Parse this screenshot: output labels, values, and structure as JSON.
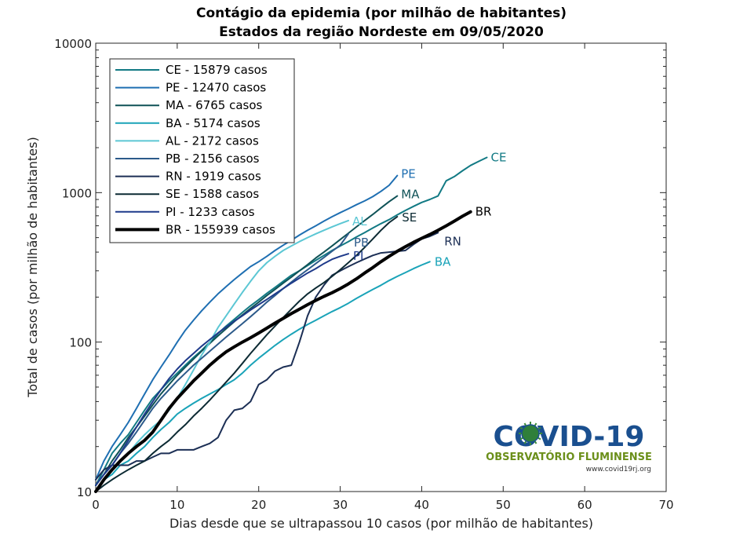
{
  "chart_data": {
    "type": "line",
    "title": "Contágio da epidemia (por milhão de habitantes)",
    "subtitle": "Estados da região Nordeste  em 09/05/2020",
    "xlabel": "Dias desde que se ultrapassou 10 casos (por milhão de habitantes)",
    "ylabel": "Total de casos (por milhão de habitantes)",
    "xlim": [
      0,
      70
    ],
    "ylim": [
      10,
      10000
    ],
    "yscale": "log",
    "xticks": [
      "0",
      "10",
      "20",
      "30",
      "40",
      "50",
      "60",
      "70"
    ],
    "yticks": [
      "10",
      "100",
      "1000",
      "10000"
    ],
    "grid": false,
    "legend_position": "top-left",
    "series": [
      {
        "name": "CE - 15879 casos",
        "end_label": "CE",
        "color": "#127a84",
        "width": 2,
        "x": [
          0,
          1,
          2,
          3,
          4,
          5,
          6,
          7,
          8,
          9,
          10,
          11,
          12,
          13,
          14,
          15,
          16,
          17,
          18,
          19,
          20,
          21,
          22,
          23,
          24,
          25,
          26,
          27,
          28,
          29,
          30,
          31,
          32,
          33,
          34,
          35,
          36,
          37,
          38,
          39,
          40,
          41,
          42,
          43,
          44,
          45,
          46,
          47,
          48
        ],
        "y": [
          11,
          14,
          18,
          21,
          24,
          29,
          35,
          42,
          48,
          55,
          62,
          70,
          79,
          88,
          100,
          114,
          128,
          142,
          158,
          175,
          192,
          212,
          232,
          255,
          280,
          300,
          325,
          352,
          380,
          410,
          440,
          470,
          505,
          540,
          580,
          620,
          660,
          710,
          760,
          810,
          860,
          900,
          950,
          1200,
          1280,
          1400,
          1520,
          1620,
          1720
        ]
      },
      {
        "name": "PE - 12470 casos",
        "end_label": "PE",
        "color": "#1f6fb2",
        "width": 2,
        "x": [
          0,
          1,
          2,
          3,
          4,
          5,
          6,
          7,
          8,
          9,
          10,
          11,
          12,
          13,
          14,
          15,
          16,
          17,
          18,
          19,
          20,
          21,
          22,
          23,
          24,
          25,
          26,
          27,
          28,
          29,
          30,
          31,
          32,
          33,
          34,
          35,
          36,
          37
        ],
        "y": [
          12,
          16,
          20,
          24,
          29,
          36,
          45,
          56,
          68,
          82,
          100,
          120,
          140,
          162,
          185,
          210,
          235,
          262,
          290,
          320,
          345,
          375,
          410,
          445,
          480,
          520,
          560,
          600,
          645,
          690,
          735,
          780,
          830,
          880,
          940,
          1020,
          1120,
          1300
        ]
      },
      {
        "name": "MA - 6765 casos",
        "end_label": "MA",
        "color": "#0f5257",
        "width": 2,
        "x": [
          0,
          1,
          2,
          3,
          4,
          5,
          6,
          7,
          8,
          9,
          10,
          11,
          12,
          13,
          14,
          15,
          16,
          17,
          18,
          19,
          20,
          21,
          22,
          23,
          24,
          25,
          26,
          27,
          28,
          29,
          30,
          31,
          32,
          33,
          34,
          35,
          36,
          37
        ],
        "y": [
          11,
          13,
          16,
          19,
          23,
          27,
          32,
          38,
          45,
          52,
          60,
          68,
          77,
          87,
          98,
          110,
          123,
          137,
          152,
          168,
          185,
          205,
          225,
          248,
          272,
          300,
          330,
          365,
          400,
          440,
          485,
          535,
          590,
          650,
          715,
          790,
          870,
          950
        ]
      },
      {
        "name": "BA - 5174 casos",
        "end_label": "BA",
        "color": "#1aa3b8",
        "width": 2,
        "x": [
          0,
          1,
          2,
          3,
          4,
          5,
          6,
          7,
          8,
          9,
          10,
          11,
          12,
          13,
          14,
          15,
          16,
          17,
          18,
          19,
          20,
          21,
          22,
          23,
          24,
          25,
          26,
          27,
          28,
          29,
          30,
          31,
          32,
          33,
          34,
          35,
          36,
          37,
          38,
          39,
          40,
          41
        ],
        "y": [
          10,
          12,
          13,
          15,
          16,
          18,
          20,
          23,
          26,
          29,
          33,
          36,
          39,
          42,
          45,
          48,
          52,
          56,
          62,
          70,
          78,
          86,
          95,
          104,
          113,
          122,
          131,
          140,
          150,
          160,
          170,
          182,
          196,
          210,
          225,
          240,
          258,
          275,
          292,
          310,
          328,
          345
        ]
      },
      {
        "name": "AL - 2172 casos",
        "end_label": "AL",
        "color": "#5cc7d4",
        "width": 2,
        "x": [
          0,
          1,
          2,
          3,
          4,
          5,
          6,
          7,
          8,
          9,
          10,
          11,
          12,
          13,
          14,
          15,
          16,
          17,
          18,
          19,
          20,
          21,
          22,
          23,
          24,
          25,
          26,
          27,
          28,
          29,
          30,
          31
        ],
        "y": [
          10,
          12,
          14,
          16,
          18,
          21,
          24,
          27,
          30,
          35,
          42,
          52,
          65,
          82,
          100,
          125,
          150,
          180,
          215,
          255,
          300,
          340,
          375,
          410,
          440,
          470,
          500,
          530,
          560,
          590,
          620,
          650
        ]
      },
      {
        "name": "PB - 2156 casos",
        "end_label": "PB",
        "color": "#2c5a8a",
        "width": 2,
        "x": [
          0,
          1,
          2,
          3,
          4,
          5,
          6,
          7,
          8,
          9,
          10,
          11,
          12,
          13,
          14,
          15,
          16,
          17,
          18,
          19,
          20,
          21,
          22,
          23,
          24,
          25,
          26,
          27,
          28,
          29,
          30,
          31
        ],
        "y": [
          11,
          13,
          15,
          18,
          21,
          25,
          30,
          36,
          42,
          48,
          55,
          62,
          70,
          78,
          87,
          97,
          108,
          120,
          133,
          148,
          165,
          185,
          205,
          228,
          252,
          278,
          305,
          335,
          368,
          405,
          445,
          530
        ]
      },
      {
        "name": "RN - 1919 casos",
        "end_label": "RN",
        "color": "#1c2f55",
        "width": 2,
        "x": [
          0,
          1,
          2,
          3,
          4,
          5,
          6,
          7,
          8,
          9,
          10,
          11,
          12,
          13,
          14,
          15,
          16,
          17,
          18,
          19,
          20,
          21,
          22,
          23,
          24,
          25,
          26,
          27,
          28,
          29,
          30,
          31,
          32,
          33,
          34,
          35,
          36,
          37,
          38,
          39,
          40,
          41,
          42
        ],
        "y": [
          12,
          14,
          15,
          15,
          15,
          16,
          16,
          17,
          18,
          18,
          19,
          19,
          19,
          20,
          21,
          23,
          30,
          35,
          36,
          40,
          52,
          56,
          64,
          68,
          70,
          100,
          150,
          200,
          240,
          280,
          300,
          320,
          340,
          360,
          380,
          395,
          400,
          405,
          410,
          450,
          490,
          510,
          540
        ]
      },
      {
        "name": "SE - 1588 casos",
        "end_label": "SE",
        "color": "#0c2a33",
        "width": 2,
        "x": [
          0,
          1,
          2,
          3,
          4,
          5,
          6,
          7,
          8,
          9,
          10,
          11,
          12,
          13,
          14,
          15,
          16,
          17,
          18,
          19,
          20,
          21,
          22,
          23,
          24,
          25,
          26,
          27,
          28,
          29,
          30,
          31,
          32,
          33,
          34,
          35,
          36,
          37
        ],
        "y": [
          10,
          11,
          12,
          13,
          14,
          15,
          16,
          18,
          20,
          22,
          25,
          28,
          32,
          36,
          41,
          47,
          54,
          62,
          72,
          84,
          97,
          112,
          128,
          146,
          166,
          188,
          210,
          230,
          250,
          275,
          305,
          340,
          380,
          430,
          490,
          560,
          630,
          690
        ]
      },
      {
        "name": "PI - 1233 casos",
        "end_label": "PI",
        "color": "#1e3a8a",
        "width": 2,
        "x": [
          0,
          1,
          2,
          3,
          4,
          5,
          6,
          7,
          8,
          9,
          10,
          11,
          12,
          13,
          14,
          15,
          16,
          17,
          18,
          19,
          20,
          21,
          22,
          23,
          24,
          25,
          26,
          27,
          28,
          29,
          30,
          31
        ],
        "y": [
          11,
          13,
          15,
          18,
          22,
          27,
          33,
          40,
          48,
          57,
          66,
          75,
          84,
          94,
          104,
          115,
          126,
          138,
          150,
          164,
          178,
          193,
          210,
          228,
          248,
          268,
          290,
          310,
          335,
          358,
          375,
          390
        ]
      },
      {
        "name": "BR - 155939 casos",
        "end_label": "BR",
        "color": "#000000",
        "width": 4,
        "x": [
          0,
          1,
          2,
          3,
          4,
          5,
          6,
          7,
          8,
          9,
          10,
          11,
          12,
          13,
          14,
          15,
          16,
          17,
          18,
          19,
          20,
          21,
          22,
          23,
          24,
          25,
          26,
          27,
          28,
          29,
          30,
          31,
          32,
          33,
          34,
          35,
          36,
          37,
          38,
          39,
          40,
          41,
          42,
          43,
          44,
          45,
          46
        ],
        "y": [
          10,
          12,
          14,
          16,
          18,
          20,
          22,
          25,
          30,
          36,
          42,
          48,
          55,
          62,
          70,
          78,
          86,
          93,
          100,
          107,
          115,
          124,
          134,
          144,
          155,
          166,
          178,
          190,
          202,
          214,
          228,
          245,
          265,
          290,
          315,
          345,
          375,
          405,
          435,
          465,
          495,
          525,
          560,
          600,
          645,
          695,
          745
        ]
      }
    ]
  },
  "logo": {
    "title": "COVID-19",
    "subtitle": "OBSERVATÓRIO FLUMINENSE",
    "url": "www.covid19rj.org"
  }
}
